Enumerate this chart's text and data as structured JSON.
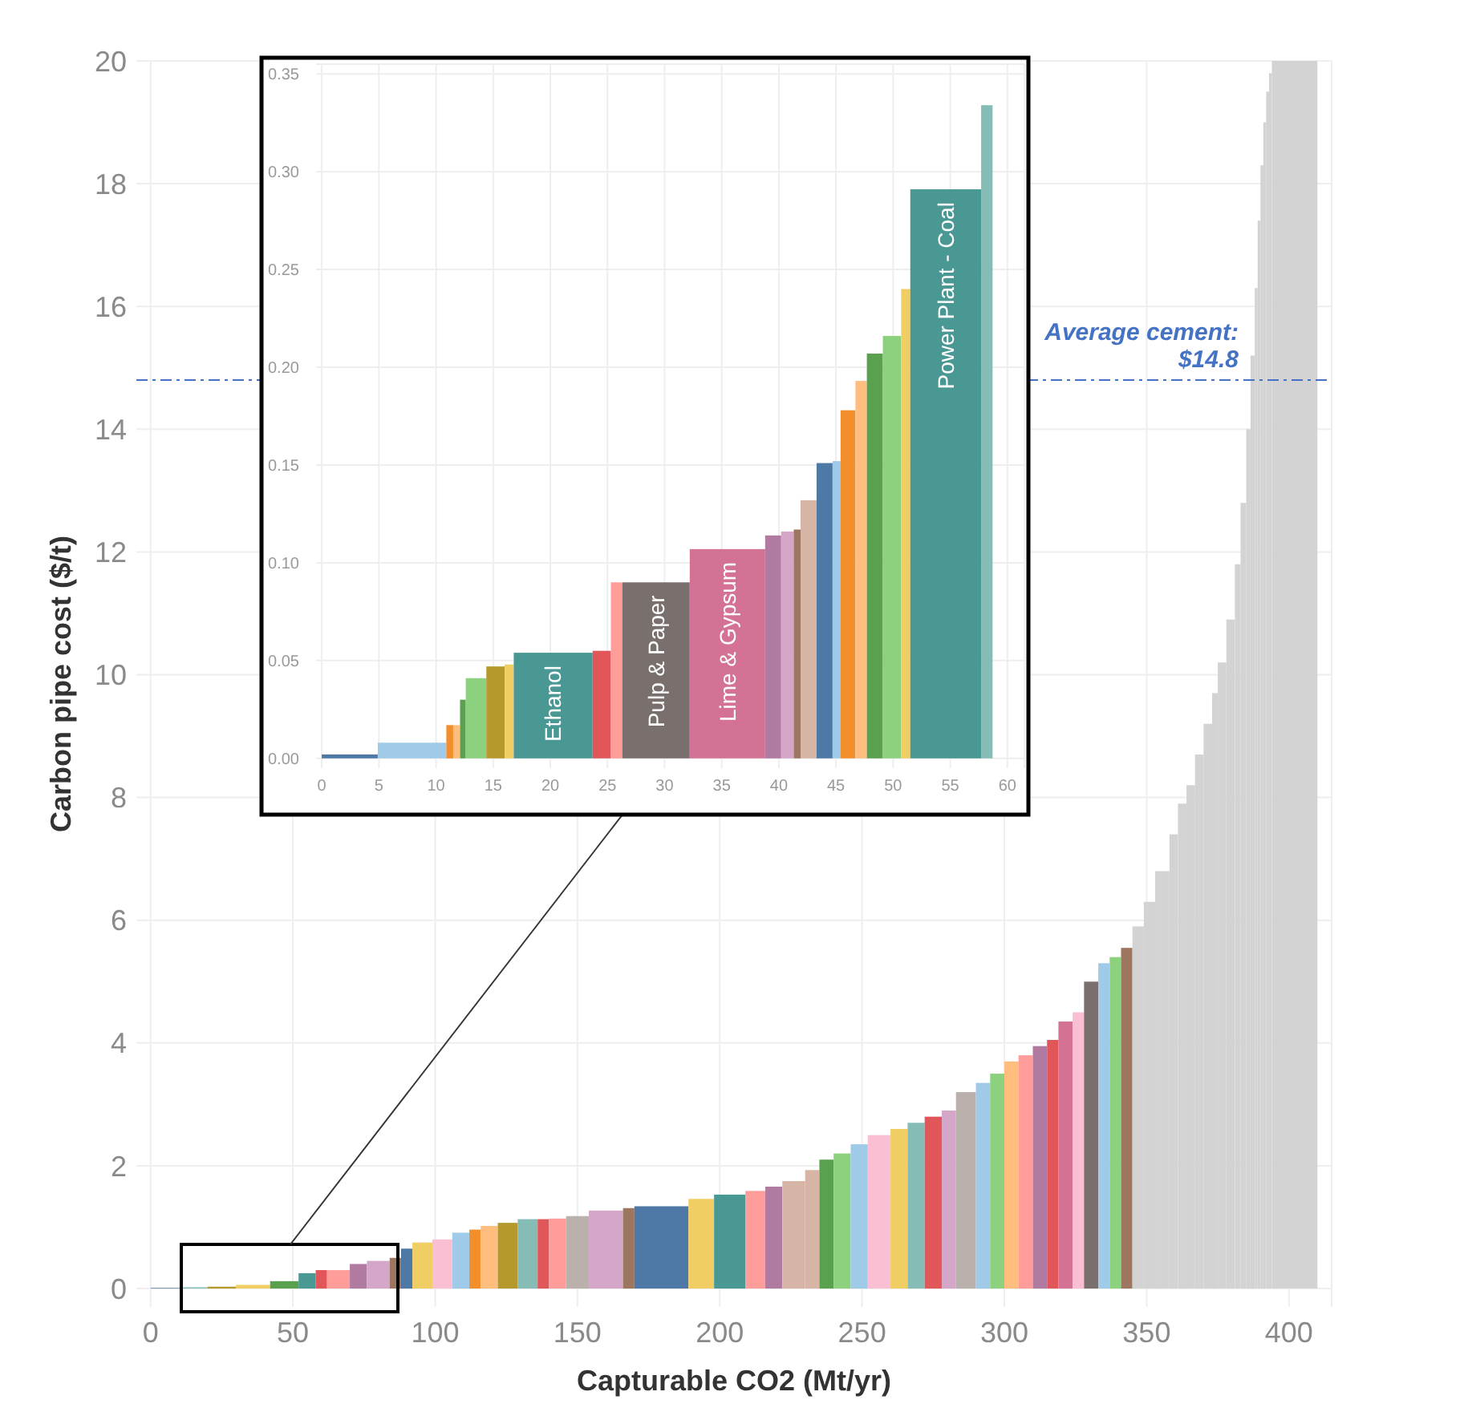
{
  "chart_data": [
    {
      "type": "histogram",
      "xlabel": "Capturable CO2 (Mt/yr)",
      "ylabel": "Carbon pipe cost ($/t)",
      "bins": [
        0,
        10,
        20,
        30,
        42,
        52,
        58,
        62,
        70,
        76,
        84,
        88,
        92,
        99,
        106,
        112,
        116,
        122,
        129,
        136,
        140,
        146,
        154,
        166,
        170,
        189,
        198,
        209,
        216,
        222,
        230,
        235,
        240,
        246,
        252,
        260,
        266,
        272,
        278,
        283,
        290,
        295,
        300,
        305,
        310,
        315,
        319,
        324,
        328,
        333,
        337,
        341,
        345,
        349,
        353,
        358,
        361,
        364,
        367,
        370,
        373,
        375,
        378,
        381,
        383,
        385,
        386.5,
        388,
        389,
        390,
        391,
        392,
        393,
        394,
        410
      ],
      "values": [
        0.01,
        0.02,
        0.03,
        0.06,
        0.12,
        0.25,
        0.3,
        0.3,
        0.4,
        0.45,
        0.5,
        0.65,
        0.75,
        0.8,
        0.91,
        0.96,
        1.02,
        1.07,
        1.13,
        1.13,
        1.14,
        1.18,
        1.27,
        1.31,
        1.34,
        1.46,
        1.53,
        1.59,
        1.66,
        1.75,
        1.93,
        2.1,
        2.2,
        2.35,
        2.5,
        2.6,
        2.7,
        2.8,
        2.9,
        3.2,
        3.35,
        3.5,
        3.7,
        3.8,
        3.95,
        4.05,
        4.35,
        4.5,
        5.0,
        5.3,
        5.4,
        5.55,
        5.9,
        6.3,
        6.8,
        7.4,
        7.9,
        8.2,
        8.7,
        9.2,
        9.7,
        10.2,
        10.9,
        11.8,
        12.8,
        14.0,
        15.2,
        16.3,
        17.4,
        18.3,
        19.0,
        19.5,
        19.8,
        20
      ],
      "colors": [
        "#4e79a7",
        "#86bcb6",
        "#b6992d",
        "#f1ce63",
        "#59a14f",
        "#499894",
        "#e15759",
        "#ff9d9a",
        "#b07aa1",
        "#d4a6c8",
        "#9d7660",
        "#4e79a7",
        "#f1ce63",
        "#fabfd2",
        "#a0cbe8",
        "#f28e2b",
        "#ffbe7d",
        "#b6992d",
        "#86bcb6",
        "#e15759",
        "#ff9d9a",
        "#bab0ac",
        "#d4a6c8",
        "#9d7660",
        "#4e79a7",
        "#f1ce63",
        "#499894",
        "#ff9d9a",
        "#b07aa1",
        "#d7b5a6",
        "#d7b5a6",
        "#59a14f",
        "#8cd17d",
        "#a0cbe8",
        "#fabfd2",
        "#f1ce63",
        "#86bcb6",
        "#e15759",
        "#d4a6c8",
        "#bab0ac",
        "#a0cbe8",
        "#8cd17d",
        "#ffbe7d",
        "#ff9d9a",
        "#b07aa1",
        "#e15759",
        "#d37295",
        "#fabfd2",
        "#79706e",
        "#a0cbe8",
        "#8cd17d",
        "#9d7660",
        "#d3d3d3",
        "#d3d3d3",
        "#d3d3d3",
        "#d3d3d3",
        "#d3d3d3",
        "#d3d3d3",
        "#d3d3d3",
        "#d3d3d3",
        "#d3d3d3",
        "#d3d3d3",
        "#d3d3d3",
        "#d3d3d3",
        "#d3d3d3",
        "#d3d3d3",
        "#d3d3d3",
        "#d3d3d3",
        "#d3d3d3",
        "#d3d3d3",
        "#d3d3d3",
        "#d3d3d3",
        "#d3d3d3",
        "#d3d3d3"
      ],
      "xlim": [
        -5,
        415
      ],
      "xticks": [
        0,
        50,
        100,
        150,
        200,
        250,
        300,
        350,
        400
      ],
      "ylim": [
        -0.3,
        20
      ],
      "yticks": [
        0,
        2,
        4,
        6,
        8,
        10,
        12,
        14,
        16,
        18,
        20
      ],
      "grid": true,
      "ref_lines": [
        {
          "axis": "y",
          "value": 14.8,
          "label": "Average cement: $14.8",
          "color": "#4472c4",
          "line_style": "dashed"
        }
      ]
    },
    {
      "type": "histogram",
      "bins": [
        0,
        4.9,
        10.9,
        11.5,
        12.1,
        12.6,
        14.4,
        16,
        16.8,
        23.7,
        25.3,
        26.3,
        32.2,
        38.8,
        40.2,
        41.3,
        41.9,
        43.3,
        44.7,
        45.4,
        46.7,
        47.7,
        49.1,
        50.7,
        51.5,
        57.7,
        58.7
      ],
      "values": [
        0.002,
        0.008,
        0.017,
        0.017,
        0.03,
        0.041,
        0.047,
        0.048,
        0.054,
        0.055,
        0.09,
        0.09,
        0.107,
        0.114,
        0.116,
        0.117,
        0.132,
        0.151,
        0.152,
        0.178,
        0.193,
        0.207,
        0.216,
        0.24,
        0.291,
        0.334
      ],
      "colors": [
        "#4e79a7",
        "#a0cbe8",
        "#f28e2b",
        "#ffbe7d",
        "#59a14f",
        "#8cd17d",
        "#b6992d",
        "#f1ce63",
        "#499894",
        "#e15759",
        "#ff9d9a",
        "#79706e",
        "#d37295",
        "#b07aa1",
        "#d4a6c8",
        "#9d7660",
        "#d7b5a6",
        "#4e79a7",
        "#a0cbe8",
        "#f28e2b",
        "#ffbe7d",
        "#59a14f",
        "#8cd17d",
        "#f1ce63",
        "#499894",
        "#86bcb6"
      ],
      "xlim": [
        -0.5,
        61.5
      ],
      "xticks": [
        0,
        5,
        10,
        15,
        20,
        25,
        30,
        35,
        40,
        45,
        50,
        55,
        60
      ],
      "ylim": [
        -0.005,
        0.355
      ],
      "yticks": [
        {
          "value": 0,
          "label": "0.00"
        },
        {
          "value": 0.05,
          "label": "0.05"
        },
        {
          "value": 0.1,
          "label": "0.10"
        },
        {
          "value": 0.15,
          "label": "0.15"
        },
        {
          "value": 0.2,
          "label": "0.20"
        },
        {
          "value": 0.25,
          "label": "0.25"
        },
        {
          "value": 0.3,
          "label": "0.30"
        },
        {
          "value": 0.35,
          "label": "0.35"
        }
      ],
      "grid": true,
      "annotations": [
        {
          "text": "Ethanol",
          "x": 20.25,
          "y": 0.054
        },
        {
          "text": "Pulp & Paper",
          "x": 29.25,
          "y": 0.09
        },
        {
          "text": "Lime & Gypsum",
          "x": 35.5,
          "y": 0.107
        },
        {
          "text": "Power Plant - Coal",
          "x": 54.6,
          "y": 0.291
        }
      ]
    }
  ]
}
